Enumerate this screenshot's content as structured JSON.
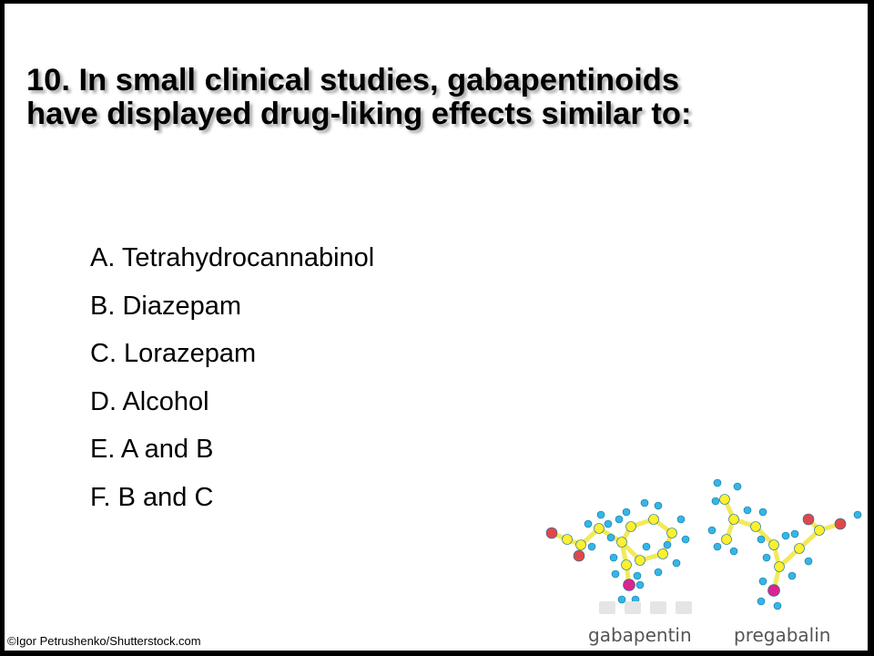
{
  "question": {
    "title_line1": "10. In small clinical studies, gabapentinoids",
    "title_line2": "have displayed drug-liking effects similar to:"
  },
  "options": [
    {
      "label": "A. Tetrahydrocannabinol"
    },
    {
      "label": "B. Diazepam"
    },
    {
      "label": "C.  Lorazepam"
    },
    {
      "label": "D. Alcohol"
    },
    {
      "label": "E. A and B"
    },
    {
      "label": "F. B and C"
    }
  ],
  "image": {
    "label_left": "gabapentin",
    "label_right": "pregabalin",
    "bond_color": "#f3e95a",
    "carbon_color": "#ffef2f",
    "hydrogen_color": "#35b6e6",
    "oxygen_color": "#e0474a",
    "nitrogen_color": "#d9258d",
    "caption_color": "#555555"
  },
  "credit": "©Igor Petrushenko/Shutterstock.com"
}
